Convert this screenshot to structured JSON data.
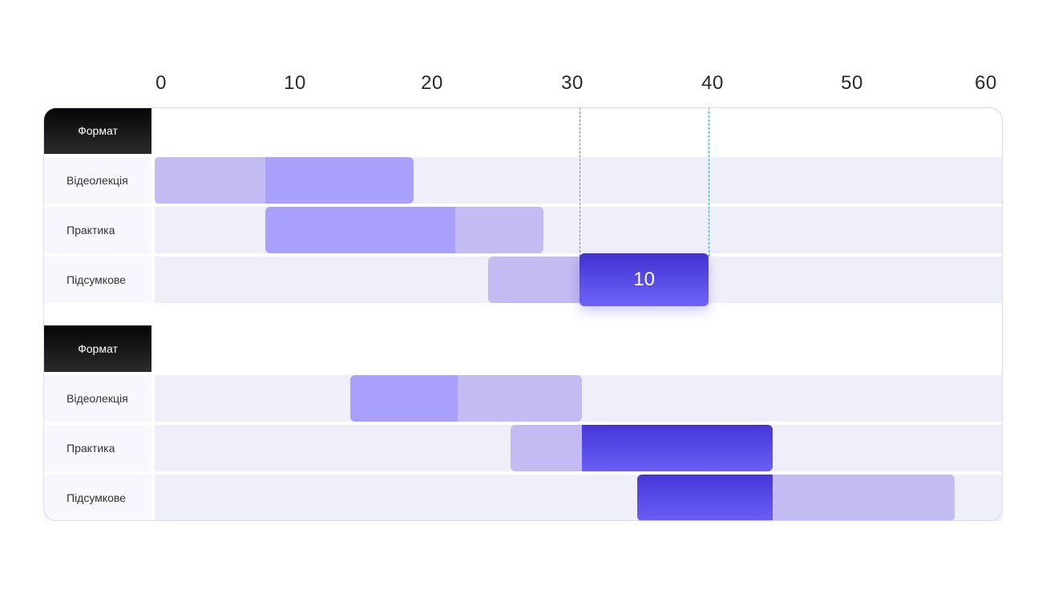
{
  "chart_data": {
    "type": "gantt",
    "x_ticks": [
      "0",
      "10",
      "20",
      "30",
      "40",
      "50",
      "60"
    ],
    "xlim": [
      0,
      60
    ],
    "colors": {
      "light": "#c2bcf2",
      "mid": "#a99ffc",
      "dark": "#5a4de8",
      "header": "#111111",
      "lane": "#efeff9"
    },
    "groups": [
      {
        "header": "Формат",
        "rows": [
          {
            "label": "Відеолекція",
            "segments": [
              {
                "start": 0,
                "end": 8,
                "style": "light"
              },
              {
                "start": 8,
                "end": 18.8,
                "style": "mid"
              }
            ]
          },
          {
            "label": "Практика",
            "segments": [
              {
                "start": 8,
                "end": 21.8,
                "style": "mid"
              },
              {
                "start": 21.8,
                "end": 28.2,
                "style": "light"
              }
            ]
          },
          {
            "label": "Підсумкове",
            "segments": [
              {
                "start": 24.2,
                "end": 30.8,
                "style": "light"
              },
              {
                "start": 30.8,
                "end": 40.2,
                "style": "highlight",
                "text": "10"
              }
            ]
          }
        ]
      },
      {
        "header": "Формат",
        "rows": [
          {
            "label": "Відеолекція",
            "segments": [
              {
                "start": 14.2,
                "end": 22,
                "style": "mid"
              },
              {
                "start": 22,
                "end": 31,
                "style": "light"
              }
            ]
          },
          {
            "label": "Практика",
            "segments": [
              {
                "start": 25.8,
                "end": 31,
                "style": "light"
              },
              {
                "start": 31,
                "end": 44.8,
                "style": "dark"
              }
            ]
          },
          {
            "label": "Підсумкове",
            "segments": [
              {
                "start": 35,
                "end": 44.8,
                "style": "dark"
              },
              {
                "start": 44.8,
                "end": 58,
                "style": "light"
              }
            ]
          }
        ]
      }
    ],
    "guides": [
      30.8,
      40.2
    ]
  }
}
